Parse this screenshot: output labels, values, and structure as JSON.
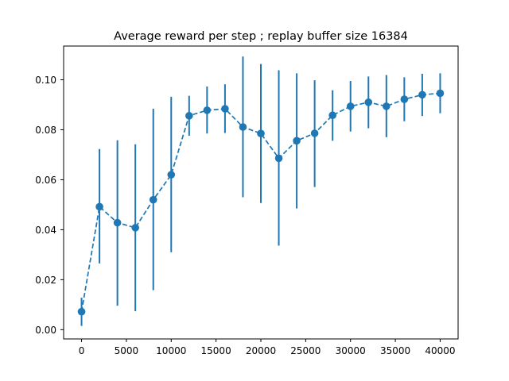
{
  "chart_data": {
    "type": "line",
    "title": "Average reward per step ; replay buffer size 16384",
    "xlabel": "",
    "ylabel": "",
    "xlim": [
      -2000,
      42000
    ],
    "ylim": [
      -0.0037,
      0.1135
    ],
    "x_ticks": [
      0,
      5000,
      10000,
      15000,
      20000,
      25000,
      30000,
      35000,
      40000
    ],
    "x_tick_labels": [
      "0",
      "5000",
      "10000",
      "15000",
      "20000",
      "25000",
      "30000",
      "35000",
      "40000"
    ],
    "y_ticks": [
      0.0,
      0.02,
      0.04,
      0.06,
      0.08,
      0.1
    ],
    "y_tick_labels": [
      "0.00",
      "0.02",
      "0.04",
      "0.06",
      "0.08",
      "0.10"
    ],
    "grid": false,
    "legend": "none",
    "series": [
      {
        "color": "#1f77b4",
        "line_style": "dashed",
        "marker": "circle",
        "error_bars": true,
        "points": [
          {
            "x": 0,
            "y": 0.0072,
            "err_low": 0.0015,
            "err_high": 0.0128
          },
          {
            "x": 2000,
            "y": 0.0492,
            "err_low": 0.0265,
            "err_high": 0.0723
          },
          {
            "x": 4000,
            "y": 0.0428,
            "err_low": 0.0096,
            "err_high": 0.0758
          },
          {
            "x": 6000,
            "y": 0.0408,
            "err_low": 0.0074,
            "err_high": 0.0742
          },
          {
            "x": 8000,
            "y": 0.052,
            "err_low": 0.0158,
            "err_high": 0.0884
          },
          {
            "x": 10000,
            "y": 0.062,
            "err_low": 0.031,
            "err_high": 0.0932
          },
          {
            "x": 12000,
            "y": 0.0856,
            "err_low": 0.0776,
            "err_high": 0.0936
          },
          {
            "x": 14000,
            "y": 0.0878,
            "err_low": 0.0785,
            "err_high": 0.0973
          },
          {
            "x": 16000,
            "y": 0.0884,
            "err_low": 0.0787,
            "err_high": 0.0982
          },
          {
            "x": 18000,
            "y": 0.0811,
            "err_low": 0.053,
            "err_high": 0.1093
          },
          {
            "x": 20000,
            "y": 0.0785,
            "err_low": 0.0507,
            "err_high": 0.1063
          },
          {
            "x": 22000,
            "y": 0.0686,
            "err_low": 0.0336,
            "err_high": 0.1038
          },
          {
            "x": 24000,
            "y": 0.0756,
            "err_low": 0.0485,
            "err_high": 0.1026
          },
          {
            "x": 26000,
            "y": 0.0786,
            "err_low": 0.0571,
            "err_high": 0.0998
          },
          {
            "x": 28000,
            "y": 0.0858,
            "err_low": 0.0756,
            "err_high": 0.0958
          },
          {
            "x": 30000,
            "y": 0.0894,
            "err_low": 0.0793,
            "err_high": 0.0995
          },
          {
            "x": 32000,
            "y": 0.091,
            "err_low": 0.0806,
            "err_high": 0.1013
          },
          {
            "x": 34000,
            "y": 0.0894,
            "err_low": 0.077,
            "err_high": 0.1019
          },
          {
            "x": 36000,
            "y": 0.0922,
            "err_low": 0.0834,
            "err_high": 0.101
          },
          {
            "x": 38000,
            "y": 0.094,
            "err_low": 0.0855,
            "err_high": 0.1024
          },
          {
            "x": 40000,
            "y": 0.0946,
            "err_low": 0.0866,
            "err_high": 0.1026
          }
        ]
      }
    ]
  }
}
